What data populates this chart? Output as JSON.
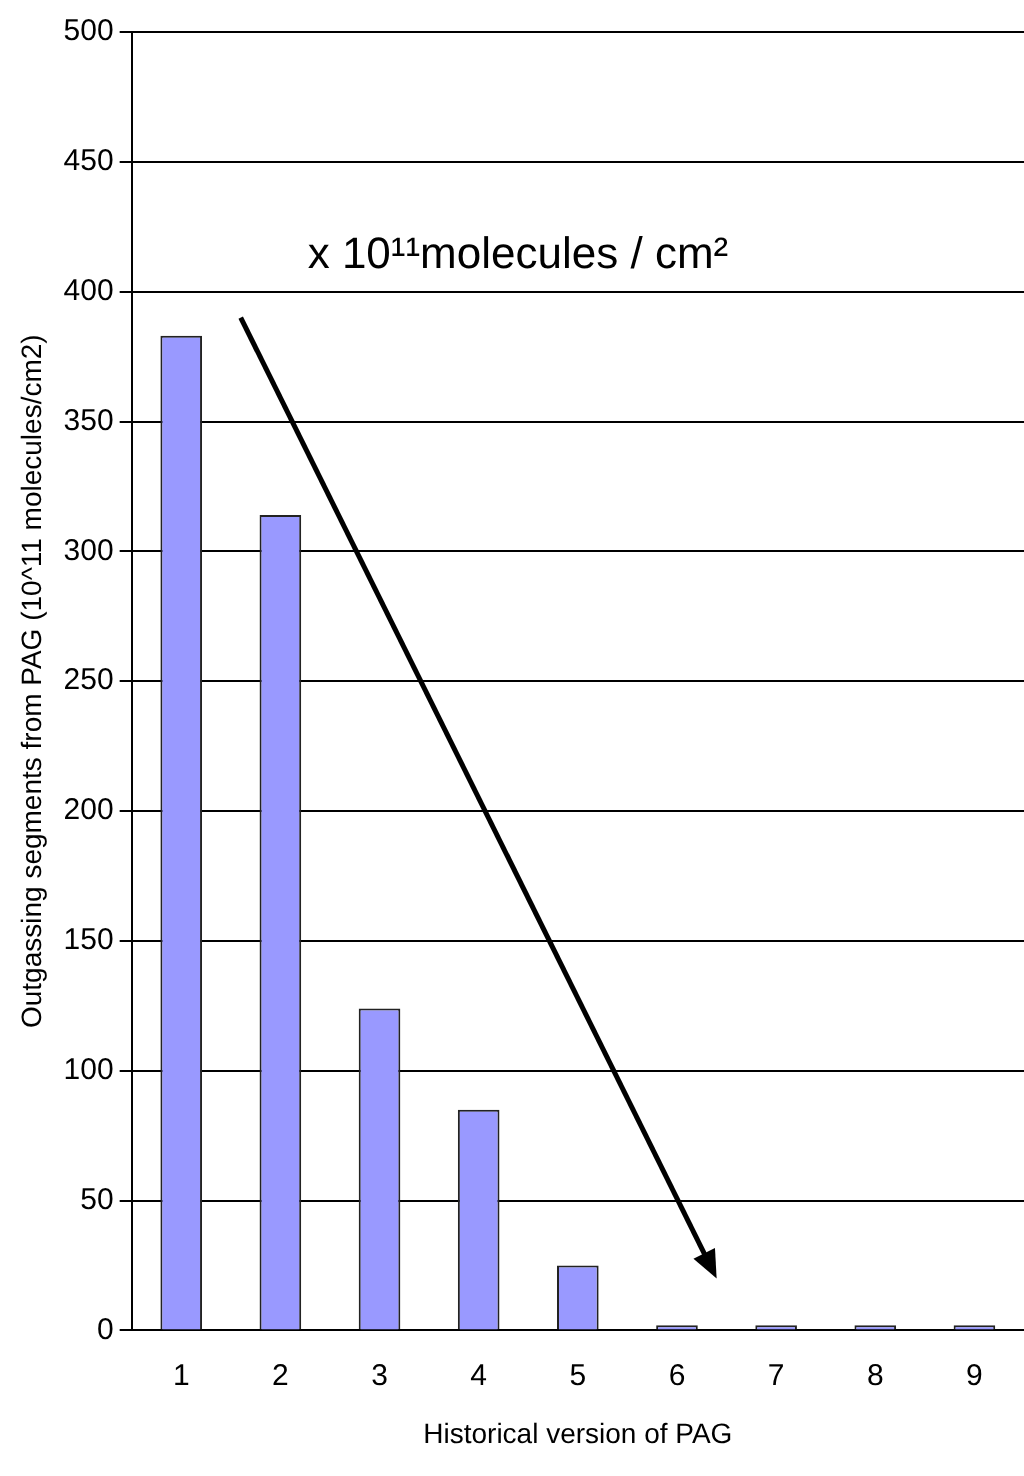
{
  "chart_data": {
    "type": "bar",
    "xlabel": "Historical version of PAG",
    "ylabel": "Outgassing segments from PAG (10^11 molecules/cm2)",
    "categories": [
      "1",
      "2",
      "3",
      "4",
      "5",
      "6",
      "7",
      "8",
      "9"
    ],
    "values": [
      383,
      314,
      124,
      85,
      25,
      2,
      2,
      2,
      2
    ],
    "color": "#9999ff",
    "ylim": [
      0,
      500
    ],
    "yticks": [
      0,
      50,
      100,
      150,
      200,
      250,
      300,
      350,
      400,
      450,
      500
    ],
    "grid": "y",
    "legend": false,
    "annotations": [
      "x 10¹¹molecules / cm²"
    ]
  }
}
